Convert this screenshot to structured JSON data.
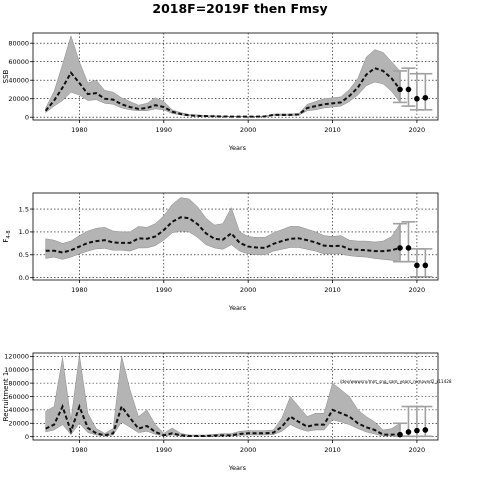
{
  "title": "2018F=2019F then Fmsy",
  "annotation": "/dev/wwwsrv/mnt_sng_sam_years_removed2_r11428",
  "chart_data": [
    {
      "type": "area",
      "ylabel": "SSB",
      "xlabel": "Years",
      "xlim": [
        1974.5,
        2022.5
      ],
      "ylim": [
        -3000,
        91000
      ],
      "xticks": [
        1980,
        1990,
        2000,
        2010,
        2020
      ],
      "yticks": [
        0,
        20000,
        40000,
        60000,
        80000
      ],
      "ytick_labels": [
        "0",
        "20000",
        "40000",
        "60000",
        "80000"
      ],
      "grid": true,
      "hist_years": [
        1976,
        1977,
        1978,
        1979,
        1980,
        1981,
        1982,
        1983,
        1984,
        1985,
        1986,
        1987,
        1988,
        1989,
        1990,
        1991,
        1992,
        1993,
        1994,
        1995,
        1996,
        1997,
        1998,
        1999,
        2000,
        2001,
        2002,
        2003,
        2004,
        2005,
        2006,
        2007,
        2008,
        2009,
        2010,
        2011,
        2012,
        2013,
        2014,
        2015,
        2016,
        2017,
        2018
      ],
      "estimate": [
        7000,
        18000,
        32000,
        48000,
        37000,
        25000,
        26000,
        20000,
        19000,
        14000,
        11000,
        9000,
        10000,
        13000,
        11000,
        6000,
        3500,
        2000,
        1500,
        1200,
        1000,
        800,
        700,
        600,
        600,
        700,
        900,
        2500,
        2500,
        2500,
        3000,
        10000,
        12000,
        14000,
        15000,
        16000,
        23000,
        32000,
        46000,
        53000,
        50000,
        42000,
        30000
      ],
      "lower": [
        5000,
        12000,
        18000,
        27000,
        24000,
        18000,
        19000,
        15000,
        14000,
        10000,
        8000,
        7000,
        7000,
        9000,
        8000,
        4000,
        2500,
        1500,
        1000,
        800,
        700,
        600,
        500,
        400,
        400,
        500,
        600,
        1800,
        1800,
        1800,
        2000,
        7000,
        8000,
        10000,
        11000,
        12000,
        17000,
        24000,
        34000,
        38000,
        36000,
        28000,
        16000
      ],
      "upper": [
        10000,
        28000,
        57000,
        88000,
        60000,
        37000,
        40000,
        29000,
        27000,
        21000,
        17000,
        13000,
        15000,
        21000,
        17000,
        8000,
        5000,
        3000,
        2500,
        1800,
        1500,
        1200,
        1000,
        900,
        900,
        1000,
        1200,
        3500,
        3500,
        3500,
        4000,
        14000,
        17000,
        20000,
        21000,
        22000,
        30000,
        42000,
        65000,
        73000,
        70000,
        60000,
        50000
      ],
      "forecast_years": [
        2019,
        2020,
        2021
      ],
      "forecast_estimate": [
        30000,
        20000,
        21000
      ],
      "forecast_lower": [
        12000,
        8000,
        8000
      ],
      "forecast_upper": [
        53000,
        47000,
        47000
      ]
    },
    {
      "type": "area",
      "ylabel": "F4-8",
      "xlabel": "Years",
      "xlim": [
        1974.5,
        2022.5
      ],
      "ylim": [
        -0.05,
        1.85
      ],
      "xticks": [
        1980,
        1990,
        2000,
        2010,
        2020
      ],
      "yticks": [
        0.0,
        0.5,
        1.0,
        1.5
      ],
      "ytick_labels": [
        "0.0",
        "0.5",
        "1.0",
        "1.5"
      ],
      "grid": true,
      "hist_years": [
        1976,
        1977,
        1978,
        1979,
        1980,
        1981,
        1982,
        1983,
        1984,
        1985,
        1986,
        1987,
        1988,
        1989,
        1990,
        1991,
        1992,
        1993,
        1994,
        1995,
        1996,
        1997,
        1998,
        1999,
        2000,
        2001,
        2002,
        2003,
        2004,
        2005,
        2006,
        2007,
        2008,
        2009,
        2010,
        2011,
        2012,
        2013,
        2014,
        2015,
        2016,
        2017,
        2018
      ],
      "estimate": [
        0.59,
        0.59,
        0.55,
        0.6,
        0.68,
        0.76,
        0.8,
        0.82,
        0.77,
        0.76,
        0.76,
        0.86,
        0.85,
        0.9,
        1.04,
        1.22,
        1.32,
        1.3,
        1.17,
        0.97,
        0.85,
        0.83,
        0.97,
        0.76,
        0.68,
        0.66,
        0.65,
        0.74,
        0.8,
        0.85,
        0.86,
        0.82,
        0.77,
        0.7,
        0.69,
        0.7,
        0.62,
        0.61,
        0.6,
        0.58,
        0.58,
        0.6,
        0.65
      ],
      "lower": [
        0.42,
        0.45,
        0.4,
        0.45,
        0.52,
        0.58,
        0.63,
        0.64,
        0.6,
        0.6,
        0.58,
        0.65,
        0.65,
        0.7,
        0.82,
        0.98,
        1.02,
        1.0,
        0.88,
        0.72,
        0.65,
        0.62,
        0.72,
        0.58,
        0.52,
        0.5,
        0.5,
        0.58,
        0.62,
        0.66,
        0.66,
        0.62,
        0.58,
        0.52,
        0.52,
        0.52,
        0.48,
        0.46,
        0.45,
        0.42,
        0.4,
        0.38,
        0.35
      ],
      "upper": [
        0.85,
        0.82,
        0.75,
        0.8,
        0.92,
        1.02,
        1.08,
        1.1,
        1.02,
        1.0,
        1.0,
        1.12,
        1.1,
        1.18,
        1.35,
        1.6,
        1.75,
        1.72,
        1.55,
        1.3,
        1.15,
        1.18,
        1.53,
        1.0,
        0.9,
        0.88,
        0.88,
        0.98,
        1.05,
        1.12,
        1.12,
        1.06,
        1.0,
        0.92,
        0.9,
        0.92,
        0.82,
        0.8,
        0.8,
        0.78,
        0.8,
        0.9,
        1.18
      ],
      "forecast_years": [
        2019,
        2020,
        2021
      ],
      "forecast_estimate": [
        0.65,
        0.27,
        0.27
      ],
      "forecast_lower": [
        0.35,
        0.02,
        0.02
      ],
      "forecast_upper": [
        1.22,
        0.63,
        0.63
      ]
    },
    {
      "type": "area",
      "ylabel": "Recruitment 1",
      "xlabel": "Years",
      "xlim": [
        1974.5,
        2022.5
      ],
      "ylim": [
        -5000,
        125000
      ],
      "xticks": [
        1980,
        1990,
        2000,
        2010,
        2020
      ],
      "yticks": [
        0,
        20000,
        40000,
        60000,
        80000,
        100000,
        120000
      ],
      "ytick_labels": [
        "0",
        "20000",
        "40000",
        "60000",
        "80000",
        "100000",
        "120000"
      ],
      "grid": true,
      "hist_years": [
        1976,
        1977,
        1978,
        1979,
        1980,
        1981,
        1982,
        1983,
        1984,
        1985,
        1986,
        1987,
        1988,
        1989,
        1990,
        1991,
        1992,
        1993,
        1994,
        1995,
        1996,
        1997,
        1998,
        1999,
        2000,
        2001,
        2002,
        2003,
        2004,
        2005,
        2006,
        2007,
        2008,
        2009,
        2010,
        2011,
        2012,
        2013,
        2014,
        2015,
        2016,
        2017,
        2018
      ],
      "estimate": [
        12000,
        18000,
        45000,
        8000,
        45000,
        13000,
        5000,
        2000,
        5000,
        45000,
        28000,
        12000,
        16000,
        7000,
        2000,
        5000,
        2000,
        1000,
        1000,
        1000,
        1500,
        2000,
        2000,
        4000,
        5000,
        5000,
        5000,
        6000,
        15000,
        30000,
        22000,
        15000,
        18000,
        18000,
        40000,
        35000,
        30000,
        20000,
        14000,
        10000,
        3000,
        3000,
        3000
      ],
      "lower": [
        7000,
        10000,
        18000,
        3000,
        20000,
        6000,
        2500,
        1000,
        2500,
        22000,
        14000,
        6000,
        8000,
        3500,
        1000,
        2500,
        1000,
        500,
        500,
        500,
        800,
        1000,
        1000,
        2000,
        2500,
        2500,
        2500,
        3000,
        8000,
        18000,
        12000,
        8000,
        10000,
        10000,
        25000,
        22000,
        18000,
        12000,
        7000,
        4000,
        1000,
        1000,
        800
      ],
      "upper": [
        38000,
        45000,
        118000,
        25000,
        122000,
        35000,
        12000,
        5000,
        12000,
        120000,
        70000,
        30000,
        40000,
        18000,
        5000,
        13000,
        5000,
        2500,
        2500,
        2500,
        3500,
        4500,
        4500,
        8000,
        9000,
        9000,
        9000,
        10000,
        28000,
        60000,
        45000,
        30000,
        35000,
        35000,
        80000,
        70000,
        60000,
        40000,
        30000,
        22000,
        10000,
        12000,
        20000
      ],
      "forecast_years": [
        2019,
        2020,
        2021
      ],
      "forecast_estimate": [
        7000,
        9000,
        10000
      ],
      "forecast_lower": [
        500,
        500,
        500
      ],
      "forecast_upper": [
        45000,
        45000,
        45000
      ]
    }
  ]
}
